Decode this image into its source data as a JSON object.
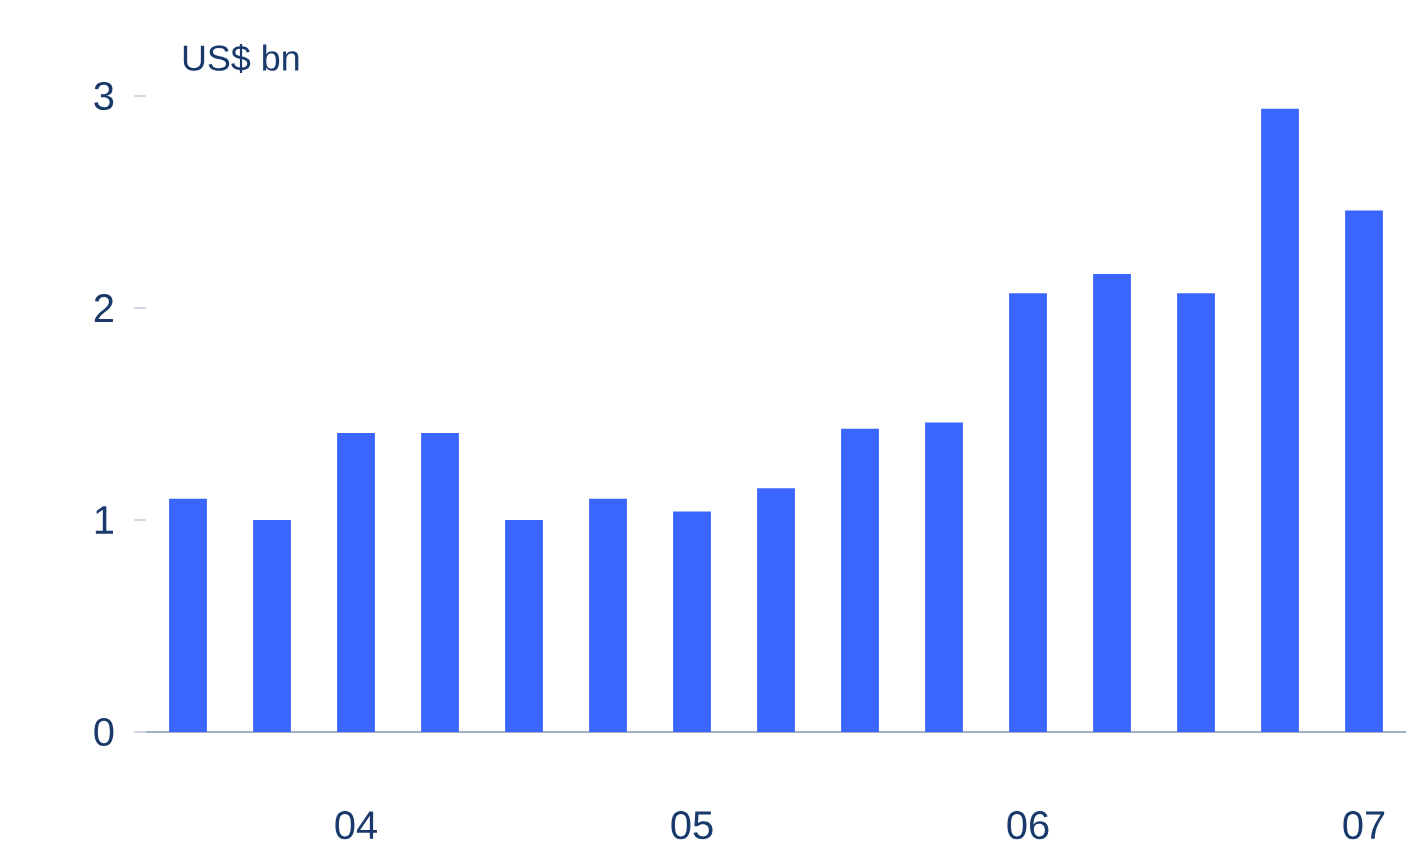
{
  "chart_data": {
    "type": "bar",
    "ylabel": "US$ bn",
    "categories": [
      null,
      null,
      "04",
      null,
      null,
      null,
      "05",
      null,
      null,
      null,
      "06",
      null,
      null,
      null,
      "07"
    ],
    "values": [
      1.1,
      1.0,
      1.41,
      1.41,
      1.0,
      1.1,
      1.04,
      1.15,
      1.43,
      1.46,
      2.07,
      2.16,
      2.07,
      2.94,
      2.46
    ],
    "color": "#3a66ff",
    "ylim": [
      0,
      3
    ],
    "yticks": [
      0,
      1,
      2,
      3
    ]
  }
}
